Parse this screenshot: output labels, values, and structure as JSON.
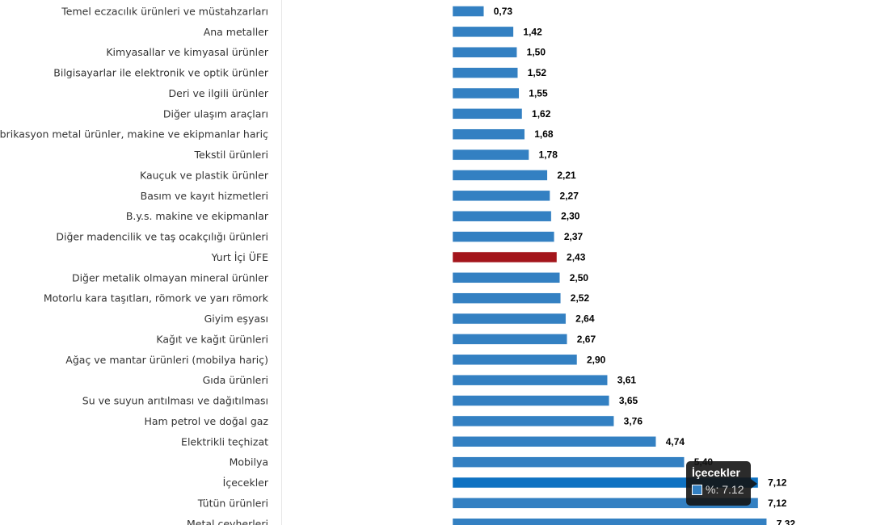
{
  "chart_data": {
    "type": "bar",
    "orientation": "horizontal",
    "categories": [
      "Temel eczacılık ürünleri ve müstahzarları",
      "Ana metaller",
      "Kimyasallar ve kimyasal ürünler",
      "Bilgisayarlar ile elektronik ve optik ürünler",
      "Deri ve ilgili ürünler",
      "Diğer ulaşım araçları",
      "Fabrikasyon metal ürünler, makine ve ekipmanlar hariç",
      "Tekstil ürünleri",
      "Kauçuk ve plastik ürünler",
      "Basım ve kayıt hizmetleri",
      "B.y.s. makine ve ekipmanlar",
      "Diğer madencilik ve taş ocakçılığı ürünleri",
      "Yurt İçi ÜFE",
      "Diğer metalik olmayan mineral ürünler",
      "Motorlu kara taşıtları, römork ve yarı römork",
      "Giyim eşyası",
      "Kağıt ve kağıt ürünleri",
      "Ağaç ve mantar ürünleri (mobilya hariç)",
      "Gıda ürünleri",
      "Su ve suyun arıtılması ve dağıtılması",
      "Ham petrol ve doğal gaz",
      "Elektrikli teçhizat",
      "Mobilya",
      "İçecekler",
      "Tütün ürünleri",
      "Metal cevherleri"
    ],
    "values": [
      0.73,
      1.42,
      1.5,
      1.52,
      1.55,
      1.62,
      1.68,
      1.78,
      2.21,
      2.27,
      2.3,
      2.37,
      2.43,
      2.5,
      2.52,
      2.64,
      2.67,
      2.9,
      3.61,
      3.65,
      3.76,
      4.74,
      5.4,
      7.12,
      7.12,
      7.32
    ],
    "labels": [
      "0,73",
      "1,42",
      "1,50",
      "1,52",
      "1,55",
      "1,62",
      "1,68",
      "1,78",
      "2,21",
      "2,27",
      "2,30",
      "2,37",
      "2,43",
      "2,50",
      "2,52",
      "2,64",
      "2,67",
      "2,90",
      "3,61",
      "3,65",
      "3,76",
      "4,74",
      "5,40",
      "7,12",
      "7,12",
      "7,32"
    ],
    "highlight_index": 12,
    "hover_index": 23,
    "colors": {
      "bar": "#3380c2",
      "highlight": "#a3151b",
      "hover": "#0f72c2"
    },
    "title": "",
    "xlabel": "",
    "ylabel": ""
  },
  "tooltip": {
    "title": "İçecekler",
    "value": "%: 7.12"
  }
}
